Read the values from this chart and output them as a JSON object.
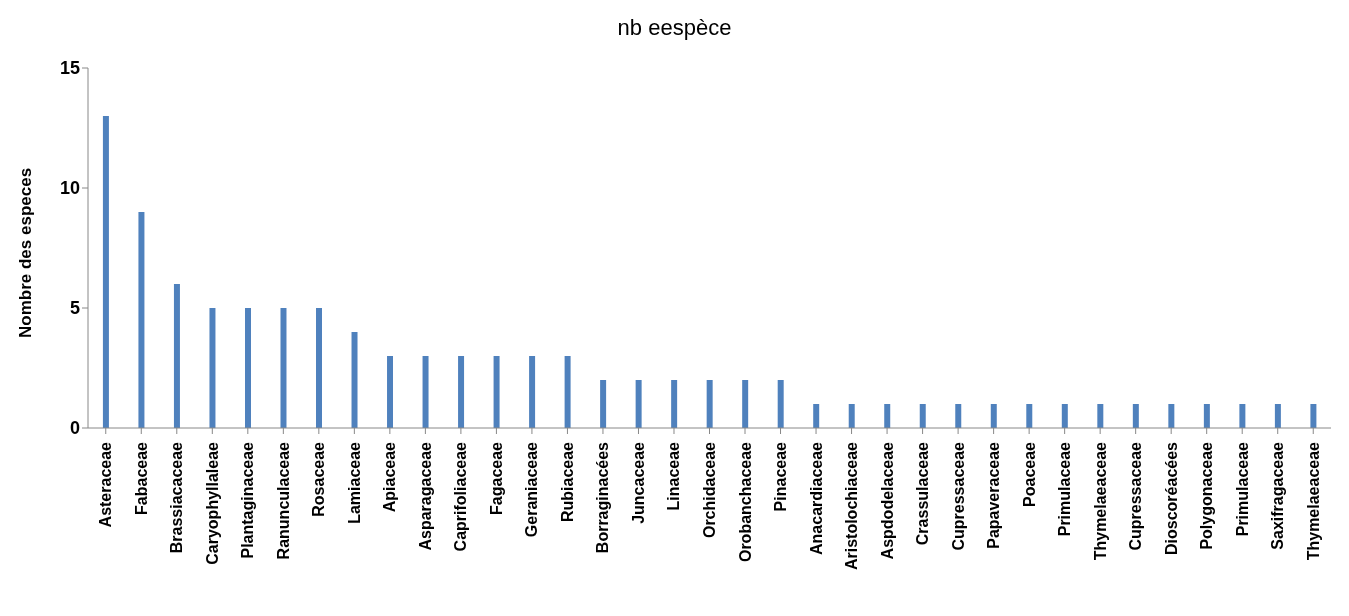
{
  "chart_data": {
    "type": "bar",
    "title": "nb eespèce",
    "ylabel": "Nombre des especes",
    "categories": [
      "Asteraceae",
      "Fabaceae",
      "Brassiacaceae",
      "Caryophyllaleae",
      "Plantaginaceae",
      "Ranunculaceae",
      "Rosaceae",
      "Lamiaceae",
      "Apiaceae",
      "Asparagaceae",
      "Caprifoliaceae",
      "Fagaceae",
      "Geraniaceae",
      "Rubiaceae",
      "Borraginacées",
      "Juncaceae",
      "Linaceae",
      "Orchidaceae",
      "Orobanchaceae",
      "Pinaceae",
      "Anacardiaceae",
      "Aristolochiaceae",
      "Aspdodelaceae",
      "Crassulaceae",
      "Cupressaceae",
      "Papaveraceae",
      "Poaceae",
      "Primulaceae",
      "Thymelaeaceae",
      "Cupressaceae",
      "Dioscoréacées",
      "Polygonaceae",
      "Primulaceae",
      "Saxifragaceae",
      "Thymelaeaceae"
    ],
    "values": [
      13,
      9,
      6,
      5,
      5,
      5,
      5,
      4,
      3,
      3,
      3,
      3,
      3,
      3,
      2,
      2,
      2,
      2,
      2,
      2,
      1,
      1,
      1,
      1,
      1,
      1,
      1,
      1,
      1,
      1,
      1,
      1,
      1,
      1,
      1
    ],
    "color": "#4f81bd",
    "ylim": [
      0,
      15
    ],
    "yticks": [
      0,
      5,
      10,
      15
    ],
    "grid": false,
    "legend": false
  }
}
